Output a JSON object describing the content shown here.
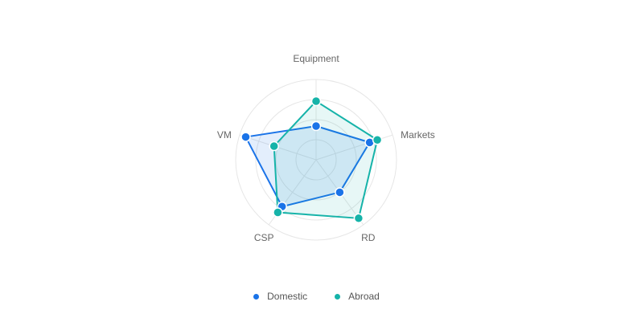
{
  "chart_data": {
    "type": "radar",
    "title": "",
    "indicators": [
      "Equipment",
      "Markets",
      "RD",
      "CSP",
      "VM"
    ],
    "max": 100,
    "rings": 4,
    "series": [
      {
        "name": "Domestic",
        "color": "#1a73e8",
        "fill": "rgba(26,115,232,0.12)",
        "values": [
          42,
          70,
          50,
          72,
          92
        ]
      },
      {
        "name": "Abroad",
        "color": "#16b3a9",
        "fill": "rgba(22,179,169,0.10)",
        "values": [
          73,
          80,
          90,
          81,
          55
        ]
      }
    ],
    "legend": {
      "position": "bottom-center",
      "items": [
        "Domestic",
        "Abroad"
      ]
    },
    "grid": true
  }
}
